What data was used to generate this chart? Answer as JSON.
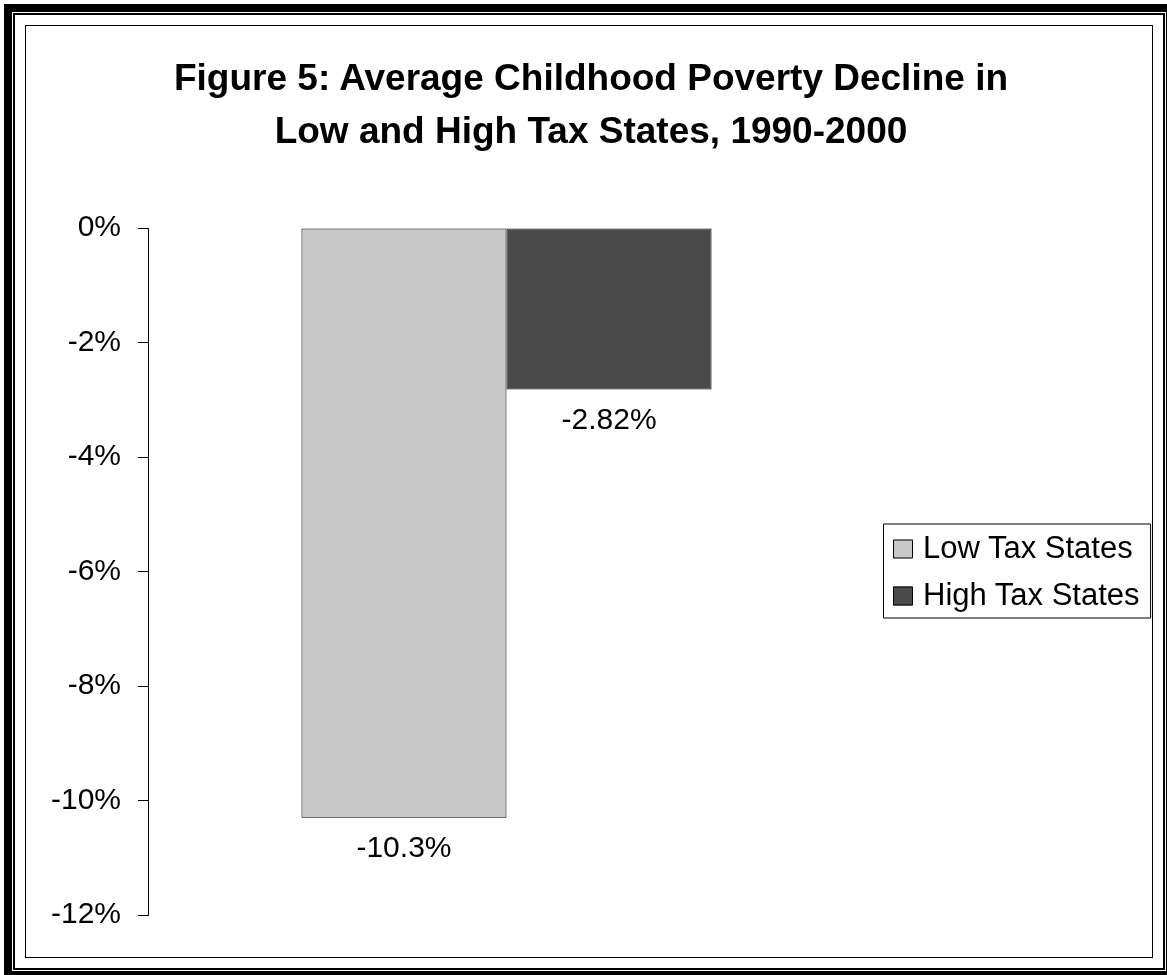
{
  "chart_data": {
    "type": "bar",
    "title": "Figure 5: Average Childhood Poverty Decline in Low and High Tax States, 1990-2000",
    "categories": [
      null
    ],
    "series": [
      {
        "name": "Low Tax States",
        "color": "#c8c8c8",
        "values": [
          -10.3
        ],
        "value_labels": [
          "-10.3%"
        ]
      },
      {
        "name": "High Tax States",
        "color": "#4a4a4a",
        "values": [
          -2.82
        ],
        "value_labels": [
          "-2.82%"
        ]
      }
    ],
    "ylim": [
      -12,
      0
    ],
    "yticks": [
      {
        "value": -12,
        "label": "-12%"
      },
      {
        "value": -10,
        "label": "-10%"
      },
      {
        "value": -8,
        "label": "-8%"
      },
      {
        "value": -6,
        "label": "-6%"
      },
      {
        "value": -4,
        "label": "-4%"
      },
      {
        "value": -2,
        "label": "-2%"
      },
      {
        "value": 0,
        "label": "0%"
      }
    ],
    "legend": "right",
    "tick_labels": "y"
  }
}
